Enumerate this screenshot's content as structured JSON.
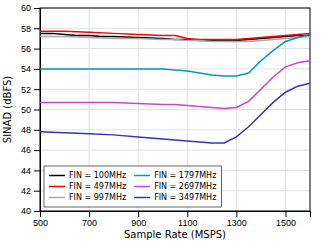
{
  "chart_data": {
    "type": "line",
    "xlabel": "Sample Rate (MSPS)",
    "ylabel": "SINAD (dBFS)",
    "xlim": [
      500,
      1600
    ],
    "ylim": [
      40,
      60
    ],
    "xticks": [
      500,
      700,
      900,
      1100,
      1300,
      1500
    ],
    "yticks": [
      40,
      42,
      44,
      46,
      48,
      50,
      52,
      54,
      56,
      58,
      60
    ],
    "grid": true,
    "legend": "lower left",
    "series": [
      {
        "name": "FIN = 100MHz",
        "color": "#000000",
        "x": [
          500,
          550,
          600,
          650,
          700,
          750,
          800,
          900,
          1000,
          1050,
          1100,
          1150,
          1200,
          1250,
          1300,
          1350,
          1400,
          1450,
          1500,
          1550,
          1600
        ],
        "values": [
          57.5,
          57.5,
          57.4,
          57.3,
          57.3,
          57.2,
          57.2,
          57.1,
          57.0,
          56.9,
          56.9,
          56.8,
          56.8,
          56.8,
          56.8,
          56.9,
          57.0,
          57.1,
          57.2,
          57.3,
          57.3
        ]
      },
      {
        "name": "FIN = 497MHz",
        "color": "#ff0000",
        "x": [
          500,
          600,
          700,
          800,
          900,
          1000,
          1050,
          1100,
          1150,
          1200,
          1250,
          1300,
          1350,
          1400,
          1450,
          1500,
          1550,
          1600
        ],
        "values": [
          57.7,
          57.7,
          57.6,
          57.5,
          57.4,
          57.3,
          57.3,
          57.0,
          56.9,
          56.9,
          56.9,
          56.9,
          57.0,
          57.1,
          57.2,
          57.3,
          57.4,
          57.5
        ]
      },
      {
        "name": "FIN = 997MHz",
        "color": "#aaaaaa",
        "x": [
          500,
          600,
          700,
          800,
          900,
          1000,
          1050,
          1100,
          1150,
          1200,
          1250,
          1300,
          1350,
          1400,
          1450,
          1500,
          1550,
          1600
        ],
        "values": [
          57.2,
          57.2,
          57.1,
          57.0,
          57.0,
          56.9,
          56.9,
          56.8,
          56.8,
          56.7,
          56.7,
          56.7,
          56.7,
          56.8,
          56.9,
          57.0,
          57.1,
          57.2
        ]
      },
      {
        "name": "FIN = 1797MHz",
        "color": "#0099bb",
        "x": [
          500,
          600,
          700,
          800,
          900,
          1000,
          1050,
          1100,
          1150,
          1200,
          1250,
          1300,
          1350,
          1400,
          1450,
          1500,
          1550,
          1600
        ],
        "values": [
          54.0,
          54.0,
          54.0,
          54.0,
          54.0,
          54.0,
          53.9,
          53.8,
          53.6,
          53.4,
          53.3,
          53.3,
          53.6,
          54.8,
          55.8,
          56.7,
          57.1,
          57.4
        ]
      },
      {
        "name": "FIN = 2697MHz",
        "color": "#cc44cc",
        "x": [
          500,
          600,
          700,
          800,
          900,
          1000,
          1050,
          1100,
          1150,
          1200,
          1250,
          1300,
          1350,
          1400,
          1450,
          1500,
          1550,
          1600
        ],
        "values": [
          50.7,
          50.7,
          50.7,
          50.7,
          50.6,
          50.5,
          50.5,
          50.4,
          50.3,
          50.2,
          50.1,
          50.2,
          50.8,
          52.0,
          53.2,
          54.2,
          54.6,
          54.8
        ]
      },
      {
        "name": "FIN = 3497MHz",
        "color": "#3333bb",
        "x": [
          500,
          600,
          700,
          800,
          900,
          1000,
          1050,
          1100,
          1150,
          1200,
          1250,
          1300,
          1350,
          1400,
          1450,
          1500,
          1550,
          1600
        ],
        "values": [
          47.8,
          47.7,
          47.6,
          47.5,
          47.3,
          47.1,
          47.0,
          46.9,
          46.8,
          46.7,
          46.7,
          47.3,
          48.3,
          49.5,
          50.7,
          51.7,
          52.3,
          52.6
        ]
      }
    ]
  }
}
